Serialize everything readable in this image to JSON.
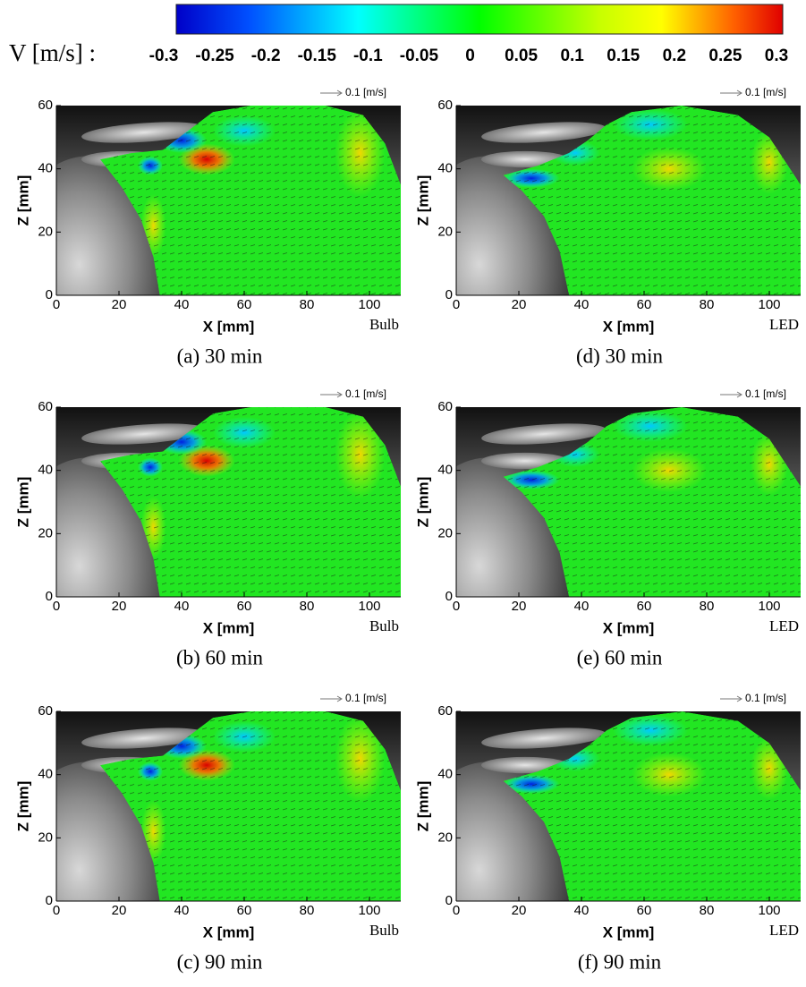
{
  "colorbar": {
    "label": "V [m/s] :",
    "lim": [
      -0.3,
      0.3
    ],
    "ticks": [
      -0.3,
      -0.25,
      -0.2,
      -0.15,
      -0.1,
      -0.05,
      0,
      0.05,
      0.1,
      0.15,
      0.2,
      0.25,
      0.3
    ]
  },
  "chart_data": [
    {
      "type": "velocity-field",
      "caption": "(a) 30 min",
      "source": "Bulb",
      "reference_vector": "0.1 [m/s]",
      "xlabel": "X [mm]",
      "ylabel": "Z [mm]",
      "xlim": [
        0,
        110
      ],
      "ylim": [
        0,
        60
      ],
      "xticks": [
        0,
        20,
        40,
        60,
        80,
        100
      ],
      "yticks": [
        0,
        20,
        40,
        60
      ]
    },
    {
      "type": "velocity-field",
      "caption": "(b) 60 min",
      "source": "Bulb",
      "reference_vector": "0.1 [m/s]",
      "xlabel": "X [mm]",
      "ylabel": "Z [mm]",
      "xlim": [
        0,
        110
      ],
      "ylim": [
        0,
        60
      ],
      "xticks": [
        0,
        20,
        40,
        60,
        80,
        100
      ],
      "yticks": [
        0,
        20,
        40,
        60
      ]
    },
    {
      "type": "velocity-field",
      "caption": "(c) 90 min",
      "source": "Bulb",
      "reference_vector": "0.1 [m/s]",
      "xlabel": "X [mm]",
      "ylabel": "Z [mm]",
      "xlim": [
        0,
        110
      ],
      "ylim": [
        0,
        60
      ],
      "xticks": [
        0,
        20,
        40,
        60,
        80,
        100
      ],
      "yticks": [
        0,
        20,
        40,
        60
      ]
    },
    {
      "type": "velocity-field",
      "caption": "(d) 30 min",
      "source": "LED",
      "reference_vector": "0.1 [m/s]",
      "xlabel": "X [mm]",
      "ylabel": "Z [mm]",
      "xlim": [
        0,
        110
      ],
      "ylim": [
        0,
        60
      ],
      "xticks": [
        0,
        20,
        40,
        60,
        80,
        100
      ],
      "yticks": [
        0,
        20,
        40,
        60
      ]
    },
    {
      "type": "velocity-field",
      "caption": "(e) 60 min",
      "source": "LED",
      "reference_vector": "0.1 [m/s]",
      "xlabel": "X [mm]",
      "ylabel": "Z [mm]",
      "xlim": [
        0,
        110
      ],
      "ylim": [
        0,
        60
      ],
      "xticks": [
        0,
        20,
        40,
        60,
        80,
        100
      ],
      "yticks": [
        0,
        20,
        40,
        60
      ]
    },
    {
      "type": "velocity-field",
      "caption": "(f) 90 min",
      "source": "LED",
      "reference_vector": "0.1 [m/s]",
      "xlabel": "X [mm]",
      "ylabel": "Z [mm]",
      "xlim": [
        0,
        110
      ],
      "ylim": [
        0,
        60
      ],
      "xticks": [
        0,
        20,
        40,
        60,
        80,
        100
      ],
      "yticks": [
        0,
        20,
        40,
        60
      ]
    }
  ]
}
